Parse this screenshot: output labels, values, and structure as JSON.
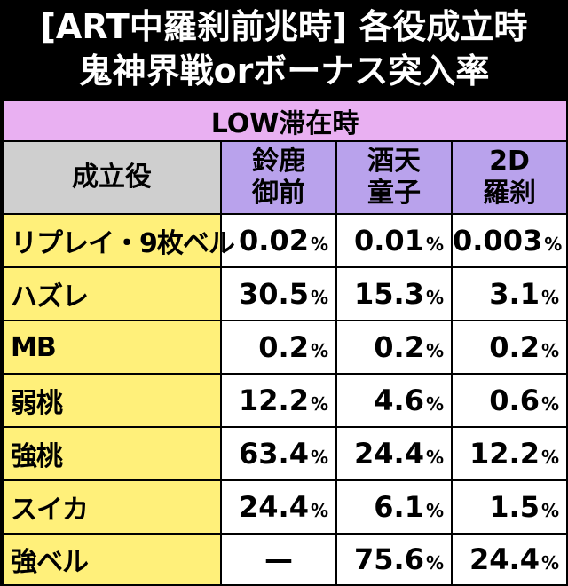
{
  "title": {
    "line1": "[ART中羅刹前兆時] 各役成立時",
    "line2": "鬼神界戦orボーナス突入率"
  },
  "table": {
    "band": "LOW滞在時",
    "role_header": "成立役",
    "columns": [
      {
        "line1": "鈴鹿",
        "line2": "御前"
      },
      {
        "line1": "酒天",
        "line2": "童子"
      },
      {
        "line1": "2D",
        "line2": "羅刹"
      }
    ],
    "rows": [
      {
        "role": "リプレイ・9枚ベル",
        "values": [
          "0.02",
          "0.01",
          "0.003"
        ]
      },
      {
        "role": "ハズレ",
        "values": [
          "30.5",
          "15.3",
          "3.1"
        ]
      },
      {
        "role": "MB",
        "values": [
          "0.2",
          "0.2",
          "0.2"
        ]
      },
      {
        "role": "弱桃",
        "values": [
          "12.2",
          "4.6",
          "0.6"
        ]
      },
      {
        "role": "強桃",
        "values": [
          "63.4",
          "24.4",
          "12.2"
        ]
      },
      {
        "role": "スイカ",
        "values": [
          "24.4",
          "6.1",
          "1.5"
        ]
      },
      {
        "role": "強ベル",
        "values": [
          "—",
          "75.6",
          "24.4"
        ]
      }
    ],
    "unit": "%",
    "colors": {
      "band": "#e9b0f2",
      "role_header": "#cfcfcf",
      "char_header": "#b9a2ec",
      "role_cell": "#fff07a",
      "value_cell": "#ffffff"
    }
  }
}
